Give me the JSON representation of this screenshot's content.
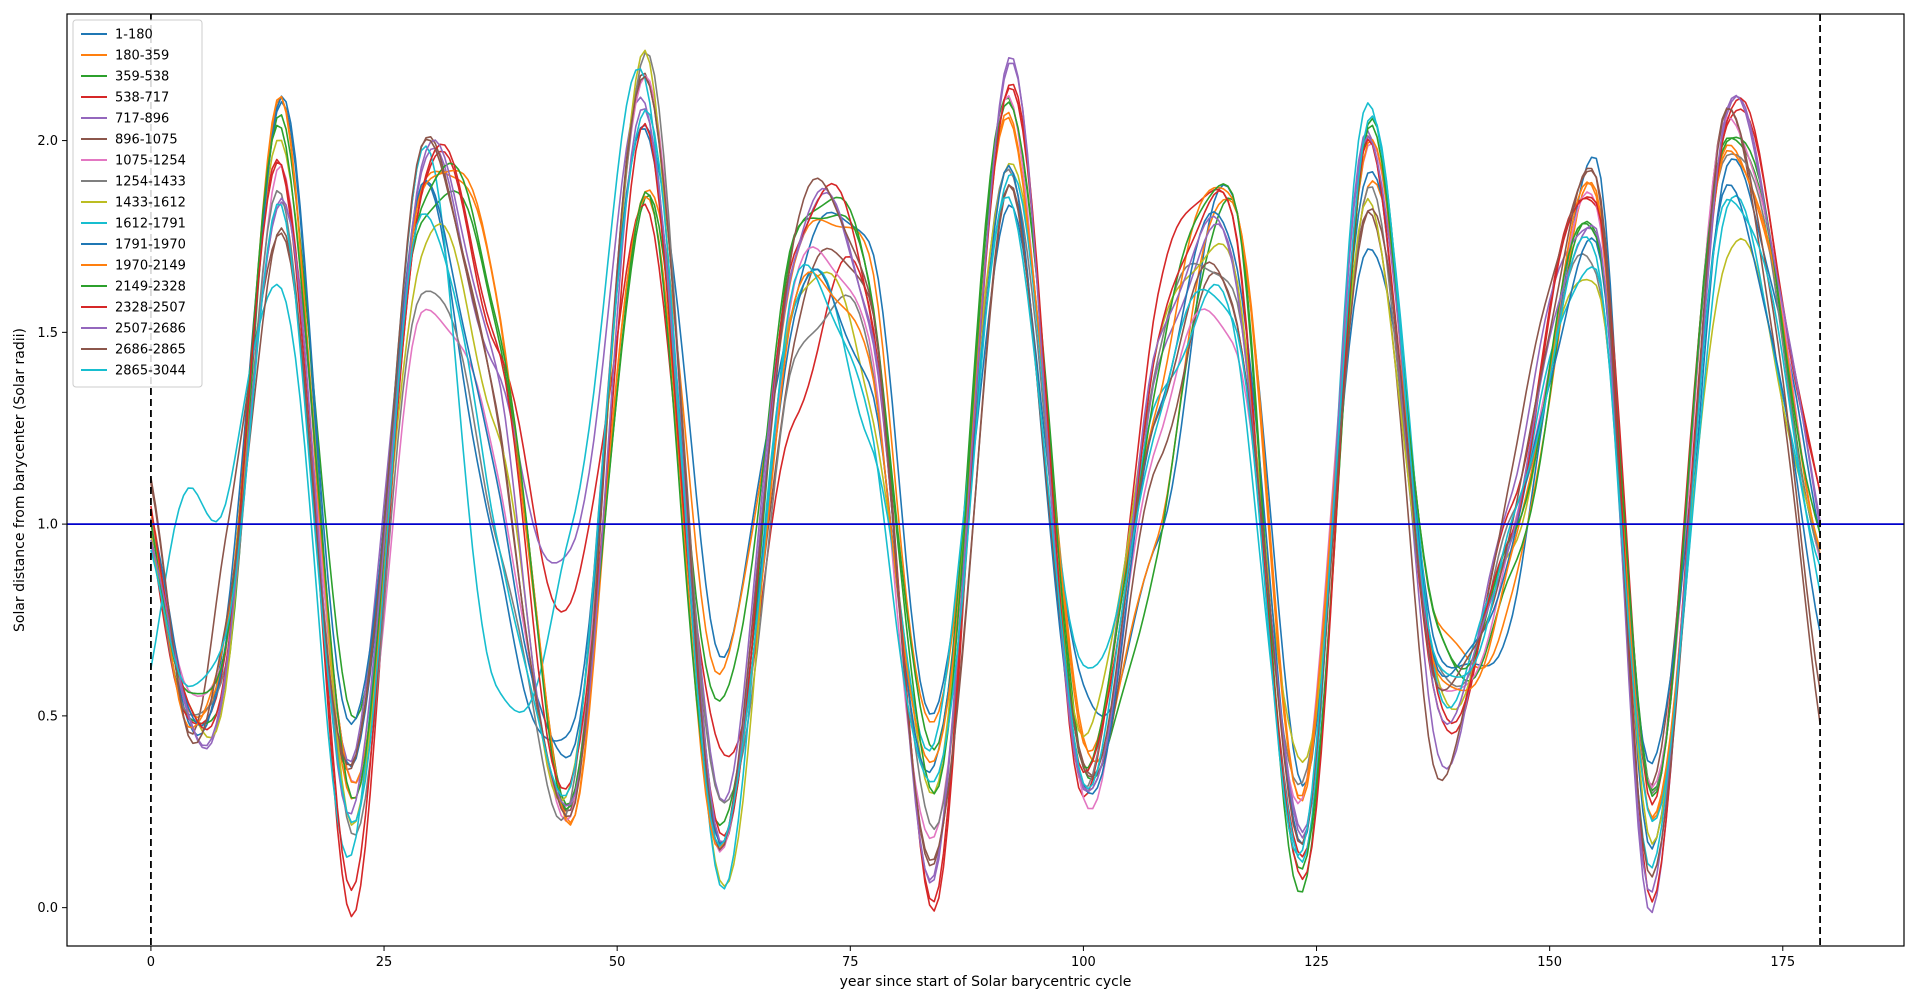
{
  "chart_data": {
    "type": "line",
    "title": "",
    "xlabel": "year since start of Solar barycentric cycle",
    "ylabel": "Solar distance from barycenter (Solar radii)",
    "xlim": [
      -9,
      188
    ],
    "ylim": [
      -0.1,
      2.33
    ],
    "xticks": [
      0,
      25,
      50,
      75,
      100,
      125,
      150,
      175
    ],
    "xtick_labels": [
      "0",
      "25",
      "50",
      "75",
      "100",
      "125",
      "150",
      "175"
    ],
    "yticks": [
      0.0,
      0.5,
      1.0,
      1.5,
      2.0
    ],
    "ytick_labels": [
      "0.0",
      "0.5",
      "1.0",
      "1.5",
      "2.0"
    ],
    "grid": false,
    "legend_position": "top-left",
    "reference_lines": [
      {
        "orientation": "horizontal",
        "value": 1.0,
        "color": "#0000cc",
        "style": "solid"
      },
      {
        "orientation": "vertical",
        "value": 0,
        "color": "#000000",
        "style": "dashed"
      },
      {
        "orientation": "vertical",
        "value": 179,
        "color": "#000000",
        "style": "dashed"
      }
    ],
    "x_key": [
      0,
      4,
      8,
      14,
      21.5,
      29,
      37,
      45,
      53,
      61,
      69,
      77,
      84,
      92,
      100,
      108,
      116,
      123.5,
      130.5,
      138,
      146,
      155,
      161,
      169,
      179
    ],
    "base_profile": [
      1.0,
      0.55,
      0.8,
      2.0,
      0.25,
      1.85,
      1.0,
      0.35,
      2.1,
      0.3,
      1.6,
      1.0,
      0.3,
      1.95,
      0.35,
      1.35,
      1.7,
      0.25,
      1.9,
      0.6,
      1.0,
      1.75,
      0.25,
      1.9,
      1.0
    ],
    "series": [
      {
        "name": "1-180",
        "color": "#1f77b4",
        "values": [
          0.95,
          0.5,
          0.7,
          2.1,
          0.35,
          1.85,
          0.9,
          0.45,
          2.06,
          0.69,
          1.6,
          1.73,
          0.5,
          1.8,
          0.55,
          0.95,
          1.88,
          0.35,
          1.75,
          0.7,
          0.78,
          1.92,
          0.14,
          1.9,
          1.0
        ]
      },
      {
        "name": "180-359",
        "color": "#ff7f0e",
        "values": [
          1.0,
          0.55,
          0.65,
          2.08,
          0.25,
          1.85,
          1.6,
          0.25,
          1.9,
          0.62,
          1.66,
          1.67,
          0.45,
          2.05,
          0.45,
          1.0,
          1.87,
          0.3,
          1.9,
          0.75,
          0.8,
          1.85,
          0.2,
          1.97,
          0.95
        ]
      },
      {
        "name": "359-538",
        "color": "#2ca02c",
        "values": [
          1.02,
          0.5,
          0.6,
          2.05,
          0.5,
          1.8,
          1.55,
          0.3,
          1.85,
          0.51,
          1.72,
          1.62,
          0.4,
          2.13,
          0.4,
          0.95,
          1.84,
          0.02,
          2.02,
          0.7,
          0.85,
          1.78,
          0.3,
          2.03,
          0.9
        ]
      },
      {
        "name": "538-717",
        "color": "#d62728",
        "values": [
          1.0,
          0.46,
          0.7,
          1.96,
          0.01,
          1.89,
          1.48,
          0.78,
          1.8,
          0.39,
          1.27,
          1.6,
          0.02,
          2.17,
          0.3,
          1.58,
          1.77,
          0.1,
          1.98,
          0.5,
          1.06,
          1.86,
          0.3,
          2.07,
          1.05
        ]
      },
      {
        "name": "717-896",
        "color": "#9467bd",
        "values": [
          0.98,
          0.48,
          0.6,
          1.87,
          0.4,
          1.92,
          1.38,
          0.9,
          2.08,
          0.3,
          1.72,
          1.55,
          0.1,
          2.2,
          0.28,
          1.38,
          1.68,
          0.2,
          2.03,
          0.42,
          1.12,
          1.75,
          0.01,
          2.06,
          1.0
        ]
      },
      {
        "name": "896-1075",
        "color": "#8c564b",
        "values": [
          1.1,
          0.48,
          0.93,
          1.75,
          0.34,
          1.95,
          1.28,
          0.25,
          2.2,
          0.2,
          1.49,
          1.58,
          0.1,
          1.85,
          0.35,
          1.16,
          1.6,
          0.2,
          1.85,
          0.37,
          1.16,
          1.87,
          0.3,
          2.05,
          0.51
        ]
      },
      {
        "name": "1075-1254",
        "color": "#e377c2",
        "values": [
          0.98,
          0.6,
          0.65,
          1.9,
          0.3,
          1.53,
          1.16,
          0.27,
          2.2,
          0.15,
          1.6,
          1.45,
          0.15,
          2.1,
          0.3,
          1.25,
          1.5,
          0.3,
          2.0,
          0.58,
          0.95,
          1.82,
          0.28,
          2.05,
          0.93
        ]
      },
      {
        "name": "1254-1433",
        "color": "#7f7f7f",
        "values": [
          1.0,
          0.5,
          0.65,
          1.85,
          0.2,
          1.62,
          1.0,
          0.3,
          2.22,
          0.25,
          1.4,
          1.45,
          0.2,
          1.95,
          0.35,
          1.45,
          1.6,
          0.3,
          1.85,
          0.6,
          1.0,
          1.68,
          0.3,
          1.99,
          0.9
        ]
      },
      {
        "name": "1433-1612",
        "color": "#bcbd22",
        "values": [
          1.0,
          0.5,
          0.6,
          2.03,
          0.25,
          1.73,
          1.26,
          0.3,
          2.2,
          0.05,
          1.58,
          1.35,
          0.33,
          1.97,
          0.45,
          1.45,
          1.65,
          0.35,
          1.82,
          0.58,
          0.95,
          1.65,
          0.2,
          1.72,
          0.9
        ]
      },
      {
        "name": "1612-1791",
        "color": "#17becf",
        "values": [
          0.65,
          1.08,
          1.05,
          1.64,
          0.15,
          1.97,
          0.55,
          0.95,
          2.15,
          0.08,
          1.6,
          1.24,
          0.45,
          1.9,
          0.6,
          1.3,
          1.52,
          0.13,
          2.11,
          0.6,
          1.0,
          1.65,
          0.12,
          1.81,
          0.82
        ]
      },
      {
        "name": "1791-1970",
        "color": "#1f77b4",
        "values": [
          1.0,
          0.55,
          0.65,
          2.1,
          0.45,
          1.85,
          1.1,
          0.4,
          2.06,
          0.2,
          1.55,
          1.35,
          0.35,
          1.9,
          0.3,
          1.3,
          1.75,
          0.2,
          1.95,
          0.65,
          0.95,
          1.7,
          0.35,
          1.85,
          0.75
        ]
      },
      {
        "name": "1970-2149",
        "color": "#ff7f0e",
        "values": [
          1.0,
          0.5,
          0.7,
          2.08,
          0.3,
          1.85,
          1.62,
          0.25,
          1.88,
          0.15,
          1.55,
          1.4,
          0.35,
          2.05,
          0.45,
          1.35,
          1.87,
          0.3,
          2.0,
          0.6,
          0.9,
          1.85,
          0.2,
          1.97,
          0.95
        ]
      },
      {
        "name": "2149-2328",
        "color": "#2ca02c",
        "values": [
          1.0,
          0.55,
          0.7,
          2.03,
          0.3,
          1.85,
          1.57,
          0.28,
          1.85,
          0.18,
          1.72,
          1.63,
          0.3,
          2.13,
          0.4,
          1.4,
          1.84,
          0.07,
          2.0,
          0.7,
          0.95,
          1.78,
          0.3,
          2.03,
          0.95
        ]
      },
      {
        "name": "2328-2507",
        "color": "#d62728",
        "values": [
          1.08,
          0.5,
          0.65,
          1.97,
          0.08,
          1.89,
          1.48,
          0.3,
          2.01,
          0.18,
          1.72,
          1.6,
          0.05,
          2.17,
          0.35,
          1.45,
          1.77,
          0.05,
          1.98,
          0.55,
          1.0,
          1.86,
          0.05,
          2.07,
          1.05
        ]
      },
      {
        "name": "2507-2686",
        "color": "#9467bd",
        "values": [
          0.98,
          0.5,
          0.6,
          1.87,
          0.25,
          1.92,
          1.38,
          0.24,
          2.08,
          0.2,
          1.72,
          1.55,
          0.1,
          2.2,
          0.28,
          1.45,
          1.68,
          0.2,
          2.03,
          0.55,
          1.0,
          1.75,
          0.05,
          2.06,
          1.0
        ]
      },
      {
        "name": "2686-2865",
        "color": "#8c564b",
        "values": [
          1.1,
          0.48,
          0.7,
          1.75,
          0.34,
          1.95,
          1.28,
          0.25,
          2.2,
          0.18,
          1.75,
          1.58,
          0.1,
          1.85,
          0.35,
          1.3,
          1.6,
          0.2,
          1.85,
          0.6,
          1.0,
          1.87,
          0.05,
          2.05,
          0.6
        ]
      },
      {
        "name": "2865-3044",
        "color": "#17becf",
        "values": [
          0.9,
          0.6,
          0.7,
          1.8,
          0.2,
          1.8,
          1.0,
          0.35,
          2.1,
          0.15,
          1.6,
          1.25,
          0.3,
          1.85,
          0.35,
          1.3,
          1.55,
          0.15,
          2.05,
          0.62,
          0.98,
          1.7,
          0.2,
          1.85,
          0.9
        ]
      }
    ]
  }
}
